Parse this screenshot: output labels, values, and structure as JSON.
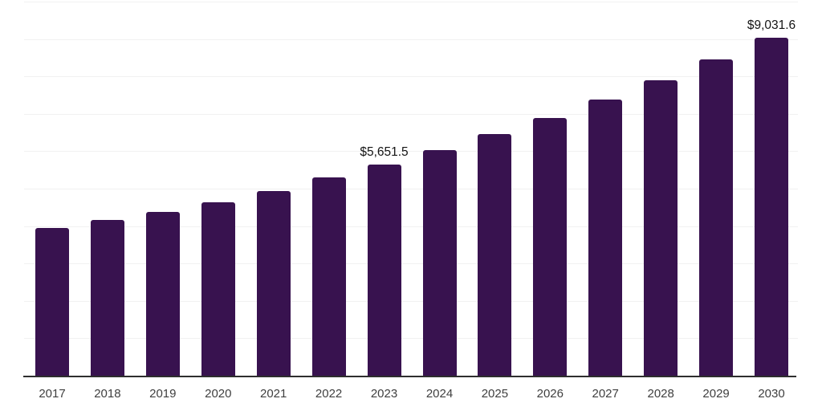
{
  "chart_data": {
    "type": "bar",
    "title": "",
    "xlabel": "",
    "ylabel": "",
    "categories": [
      "2017",
      "2018",
      "2019",
      "2020",
      "2021",
      "2022",
      "2023",
      "2024",
      "2025",
      "2026",
      "2027",
      "2028",
      "2029",
      "2030"
    ],
    "values": [
      3950,
      4170,
      4380,
      4630,
      4940,
      5310,
      5651.5,
      6030,
      6450,
      6890,
      7390,
      7890,
      8450,
      9031.6
    ],
    "point_labels": {
      "2023": "$5,651.5",
      "2030": "$9,031.6"
    },
    "ylim": [
      0,
      10000
    ],
    "gridline_interval": 1000,
    "grid": "horizontal",
    "legend": "none",
    "y_axis_labels_visible": false,
    "colors": {
      "bar": "#38124F",
      "gridline": "#f1f1f1",
      "axis_line": "#2e2e2e",
      "point_label_text": "#141414",
      "tick_label_text": "#3f3f3f",
      "background": "#ffffff"
    }
  }
}
